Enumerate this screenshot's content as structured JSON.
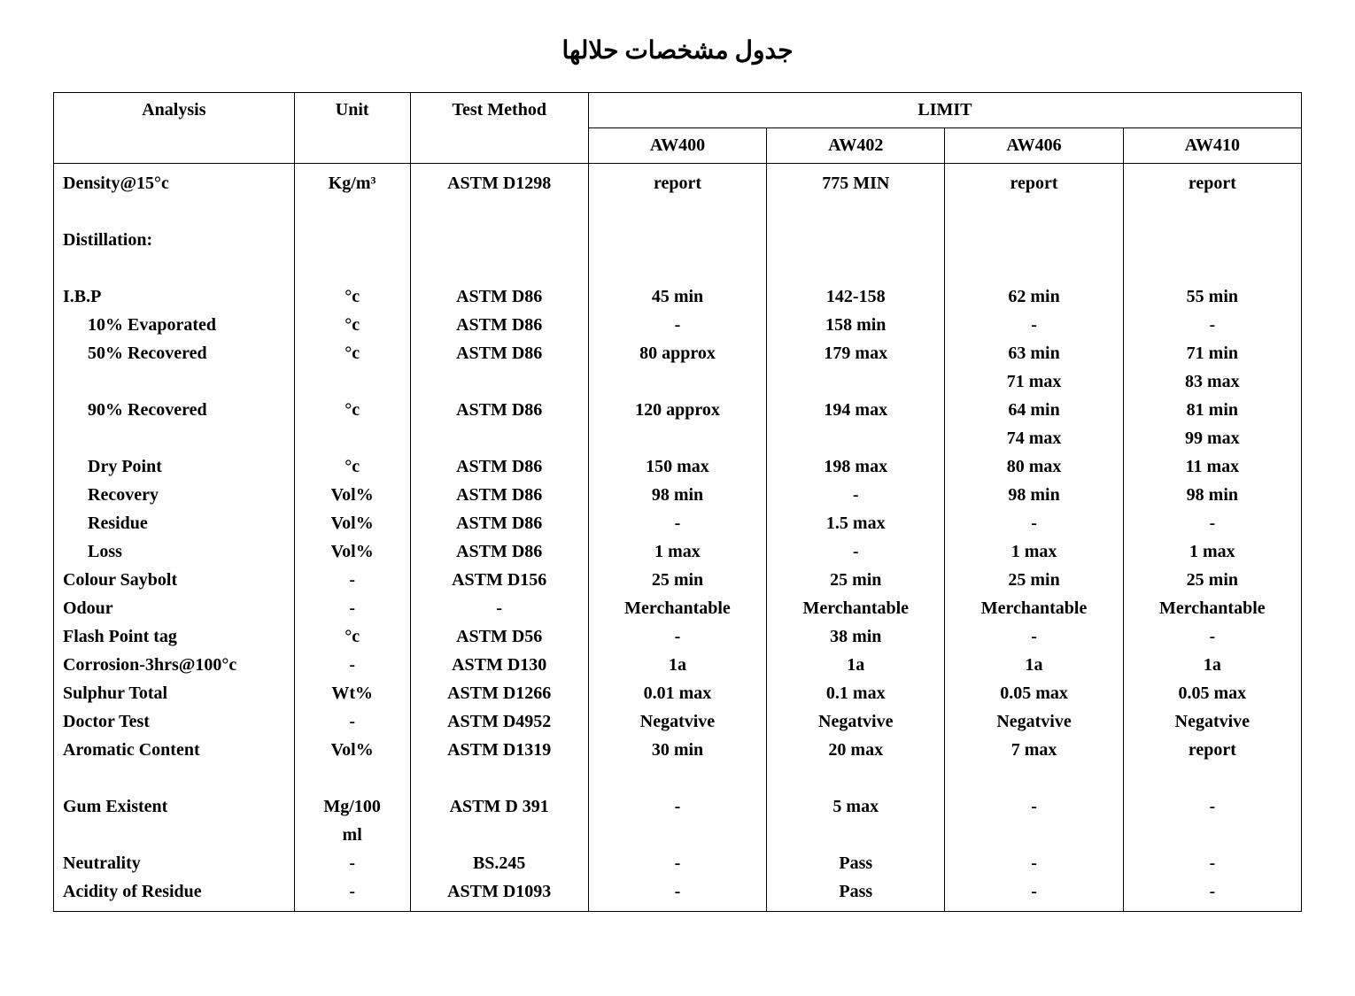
{
  "title": "جدول مشخصات حلالها",
  "headers": {
    "analysis": "Analysis",
    "unit": "Unit",
    "method": "Test Method",
    "limit": "LIMIT",
    "aw400": "AW400",
    "aw402": "AW402",
    "aw406": "AW406",
    "aw410": "AW410"
  },
  "rows": [
    {
      "label": "Density@15°c",
      "indent": 0,
      "unit": "Kg/m³",
      "method": "ASTM D1298",
      "aw400": "report",
      "aw402": "775 MIN",
      "aw406": "report",
      "aw410": "report"
    },
    {
      "label": "",
      "indent": 0,
      "unit": "",
      "method": "",
      "aw400": "",
      "aw402": "",
      "aw406": "",
      "aw410": ""
    },
    {
      "label": "Distillation:",
      "indent": 0,
      "unit": "",
      "method": "",
      "aw400": "",
      "aw402": "",
      "aw406": "",
      "aw410": ""
    },
    {
      "label": "",
      "indent": 0,
      "unit": "",
      "method": "",
      "aw400": "",
      "aw402": "",
      "aw406": "",
      "aw410": ""
    },
    {
      "label": "I.B.P",
      "indent": 0,
      "unit": "°c",
      "method": "ASTM D86",
      "aw400": "45 min",
      "aw402": "142-158",
      "aw406": "62 min",
      "aw410": "55 min"
    },
    {
      "label": "10% Evaporated",
      "indent": 1,
      "unit": "°c",
      "method": "ASTM D86",
      "aw400": "-",
      "aw402": "158 min",
      "aw406": "-",
      "aw410": "-"
    },
    {
      "label": "50% Recovered",
      "indent": 1,
      "unit": "°c",
      "method": "ASTM D86",
      "aw400": "80 approx",
      "aw402": "179 max",
      "aw406": "63 min",
      "aw410": "71 min"
    },
    {
      "label": "",
      "indent": 1,
      "unit": "",
      "method": "",
      "aw400": "",
      "aw402": "",
      "aw406": "71 max",
      "aw410": "83 max"
    },
    {
      "label": "90% Recovered",
      "indent": 1,
      "unit": "°c",
      "method": "ASTM D86",
      "aw400": "120 approx",
      "aw402": "194 max",
      "aw406": "64 min",
      "aw410": "81 min"
    },
    {
      "label": "",
      "indent": 1,
      "unit": "",
      "method": "",
      "aw400": "",
      "aw402": "",
      "aw406": "74 max",
      "aw410": "99 max"
    },
    {
      "label": "Dry Point",
      "indent": 1,
      "unit": "°c",
      "method": "ASTM D86",
      "aw400": "150 max",
      "aw402": "198 max",
      "aw406": "80 max",
      "aw410": "11 max"
    },
    {
      "label": "Recovery",
      "indent": 1,
      "unit": "Vol%",
      "method": "ASTM D86",
      "aw400": "98 min",
      "aw402": "-",
      "aw406": "98 min",
      "aw410": "98 min"
    },
    {
      "label": "Residue",
      "indent": 1,
      "unit": "Vol%",
      "method": "ASTM D86",
      "aw400": "-",
      "aw402": "1.5 max",
      "aw406": "-",
      "aw410": "-"
    },
    {
      "label": "Loss",
      "indent": 1,
      "unit": "Vol%",
      "method": "ASTM D86",
      "aw400": "1 max",
      "aw402": "-",
      "aw406": "1 max",
      "aw410": "1 max"
    },
    {
      "label": "Colour Saybolt",
      "indent": 0,
      "unit": "-",
      "method": "ASTM D156",
      "aw400": "25 min",
      "aw402": "25 min",
      "aw406": "25 min",
      "aw410": "25 min"
    },
    {
      "label": "Odour",
      "indent": 0,
      "unit": "-",
      "method": "-",
      "aw400": "Merchantable",
      "aw402": "Merchantable",
      "aw406": "Merchantable",
      "aw410": "Merchantable"
    },
    {
      "label": "Flash Point tag",
      "indent": 0,
      "unit": "°c",
      "method": "ASTM D56",
      "aw400": "-",
      "aw402": "38 min",
      "aw406": "-",
      "aw410": "-"
    },
    {
      "label": "Corrosion-3hrs@100°c",
      "indent": 0,
      "unit": "-",
      "method": "ASTM D130",
      "aw400": "1a",
      "aw402": "1a",
      "aw406": "1a",
      "aw410": "1a"
    },
    {
      "label": "Sulphur Total",
      "indent": 0,
      "unit": "Wt%",
      "method": "ASTM D1266",
      "aw400": "0.01 max",
      "aw402": "0.1 max",
      "aw406": "0.05 max",
      "aw410": "0.05 max"
    },
    {
      "label": "Doctor Test",
      "indent": 0,
      "unit": "-",
      "method": "ASTM D4952",
      "aw400": "Negatvive",
      "aw402": "Negatvive",
      "aw406": "Negatvive",
      "aw410": "Negatvive"
    },
    {
      "label": "Aromatic Content",
      "indent": 0,
      "unit": "Vol%",
      "method": "ASTM D1319",
      "aw400": "30 min",
      "aw402": "20 max",
      "aw406": "7 max",
      "aw410": "report"
    },
    {
      "label": "",
      "indent": 0,
      "unit": "",
      "method": "",
      "aw400": "",
      "aw402": "",
      "aw406": "",
      "aw410": ""
    },
    {
      "label": "Gum Existent",
      "indent": 0,
      "unit": "Mg/100",
      "method": "ASTM D 391",
      "aw400": "-",
      "aw402": "5 max",
      "aw406": "-",
      "aw410": "-"
    },
    {
      "label": "",
      "indent": 0,
      "unit": "ml",
      "method": "",
      "aw400": "",
      "aw402": "",
      "aw406": "",
      "aw410": ""
    },
    {
      "label": "Neutrality",
      "indent": 0,
      "unit": "-",
      "method": "BS.245",
      "aw400": "-",
      "aw402": "Pass",
      "aw406": "-",
      "aw410": "-"
    },
    {
      "label": "Acidity of Residue",
      "indent": 0,
      "unit": "-",
      "method": "ASTM D1093",
      "aw400": "-",
      "aw402": "Pass",
      "aw406": "-",
      "aw410": "-"
    }
  ],
  "style": {
    "background_color": "#ffffff",
    "text_color": "#000000",
    "border_color": "#000000",
    "font_family": "Times New Roman",
    "title_fontsize": 28,
    "cell_fontsize": 20
  }
}
